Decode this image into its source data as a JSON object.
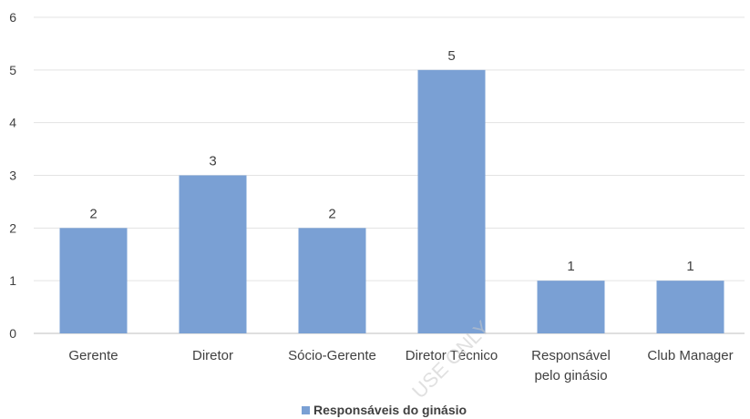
{
  "chart_data": {
    "type": "bar",
    "categories": [
      "Gerente",
      "Diretor",
      "Sócio-Gerente",
      "Diretor Técnico",
      "Responsável pelo ginásio",
      "Club Manager"
    ],
    "category_lines": [
      [
        "Gerente"
      ],
      [
        "Diretor"
      ],
      [
        "Sócio-Gerente"
      ],
      [
        "Diretor Técnico"
      ],
      [
        "Responsável",
        "pelo ginásio"
      ],
      [
        "Club Manager"
      ]
    ],
    "series": [
      {
        "name": "Responsáveis do ginásio",
        "values": [
          2,
          3,
          2,
          5,
          1,
          1
        ]
      }
    ],
    "y_ticks": [
      0,
      1,
      2,
      3,
      4,
      5,
      6
    ],
    "ylim": [
      0,
      6
    ],
    "grid": true,
    "legend_position": "bottom",
    "bar_color": "#7aa0d4",
    "gridline_color": "#e3e3e3",
    "watermark": "USE ONLY"
  }
}
